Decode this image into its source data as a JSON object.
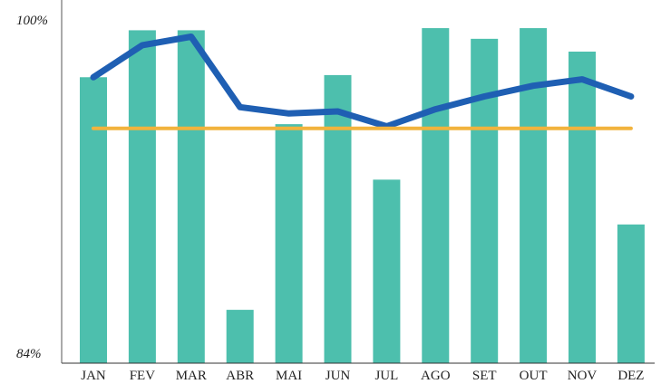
{
  "chart_data": {
    "type": "bar",
    "title": "",
    "xlabel": "",
    "ylabel": "",
    "categories": [
      "JAN",
      "FEV",
      "MAR",
      "ABR",
      "MAI",
      "JUN",
      "JUL",
      "AGO",
      "SET",
      "OUT",
      "NOV",
      "DEZ"
    ],
    "ylim": [
      84,
      100
    ],
    "y_tick_labels": [
      "100%",
      "84%"
    ],
    "grid": false,
    "legend": "none",
    "series": [
      {
        "type": "bar",
        "color": "#4dbfad",
        "values": [
          97.4,
          99.6,
          99.6,
          86.5,
          95.2,
          97.5,
          92.6,
          99.7,
          99.2,
          99.7,
          98.6,
          90.5
        ]
      },
      {
        "type": "line",
        "color": "#1f5fb3",
        "values": [
          97.4,
          98.9,
          99.3,
          96.0,
          95.7,
          95.8,
          95.1,
          95.9,
          96.5,
          97.0,
          97.3,
          96.5
        ]
      },
      {
        "type": "line",
        "color": "#f2b33d",
        "values": [
          95.0,
          95.0,
          95.0,
          95.0,
          95.0,
          95.0,
          95.0,
          95.0,
          95.0,
          95.0,
          95.0,
          95.0
        ]
      }
    ]
  }
}
